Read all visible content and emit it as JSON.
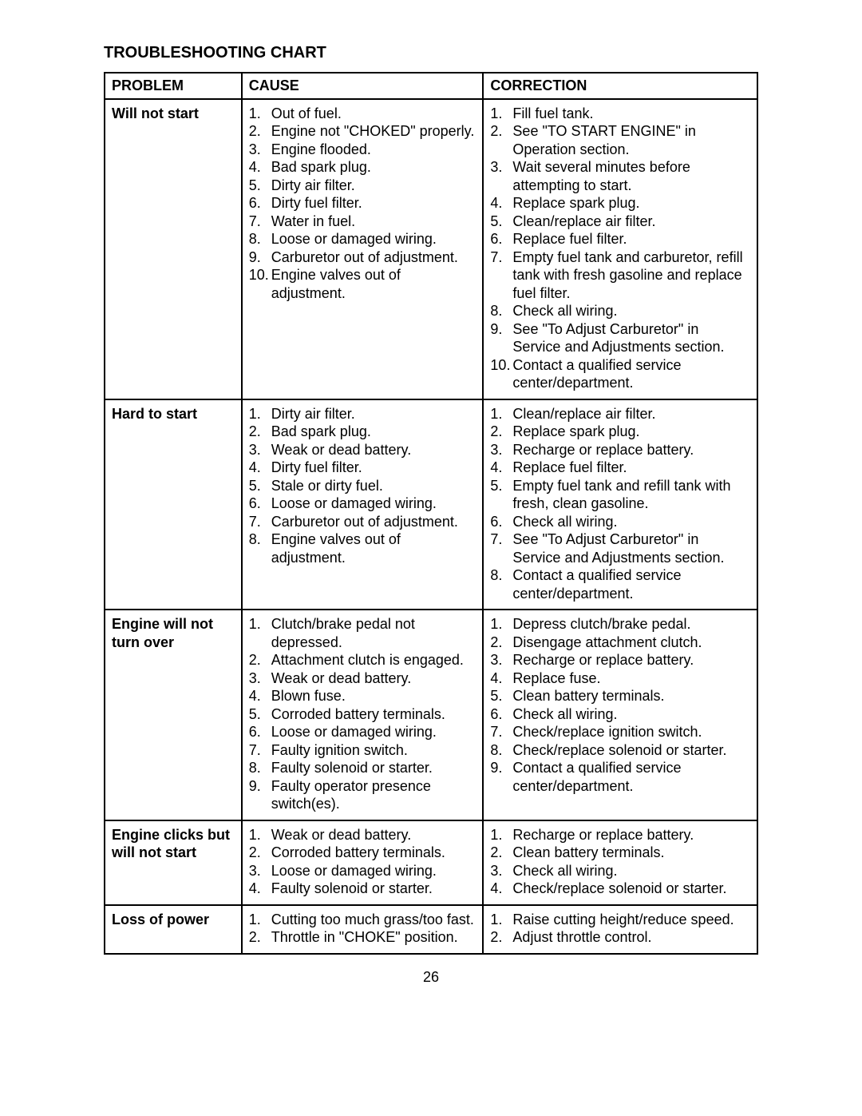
{
  "title": "TROUBLESHOOTING CHART",
  "headers": {
    "problem": "PROBLEM",
    "cause": "CAUSE",
    "correction": "CORRECTION"
  },
  "rows": [
    {
      "problem": "Will not start",
      "causes": [
        "Out of fuel.",
        "Engine not \"CHOKED\" properly.",
        "Engine flooded.",
        "Bad spark plug.",
        "Dirty air filter.",
        "Dirty fuel filter.",
        "Water in fuel.",
        "Loose or damaged wiring.",
        "Carburetor out of adjustment.",
        "Engine valves out of adjustment."
      ],
      "corrections": [
        "Fill fuel tank.",
        "See \"TO START ENGINE\" in Operation section.",
        "Wait several minutes before attempting to start.",
        "Replace spark plug.",
        "Clean/replace air filter.",
        "Replace fuel filter.",
        "Empty fuel tank and carburetor, refill tank with fresh gasoline and replace fuel filter.",
        "Check all wiring.",
        "See \"To Adjust Carburetor\" in Service and Adjustments section.",
        "Contact a qualified service center/department."
      ]
    },
    {
      "problem": "Hard to start",
      "causes": [
        "Dirty air filter.",
        "Bad spark plug.",
        "Weak or dead battery.",
        "Dirty fuel filter.",
        "Stale or dirty fuel.",
        "Loose or damaged wiring.",
        "Carburetor out of adjustment.",
        "Engine valves out of adjustment."
      ],
      "corrections": [
        "Clean/replace air filter.",
        "Replace spark plug.",
        "Recharge or replace battery.",
        "Replace fuel filter.",
        "Empty fuel tank and refill tank with fresh, clean gasoline.",
        "Check all wiring.",
        "See \"To Adjust Carburetor\" in Service and Adjustments section.",
        "Contact a qualified service center/department."
      ]
    },
    {
      "problem": "Engine will not turn over",
      "causes": [
        "Clutch/brake pedal not depressed.",
        "Attachment clutch is engaged.",
        "Weak or dead battery.",
        "Blown fuse.",
        "Corroded battery terminals.",
        "Loose or damaged wiring.",
        "Faulty ignition switch.",
        "Faulty solenoid or starter.",
        "Faulty operator presence switch(es)."
      ],
      "corrections": [
        "Depress clutch/brake pedal.",
        "Disengage attachment clutch.",
        "Recharge or replace battery.",
        "Replace fuse.",
        "Clean battery terminals.",
        "Check all wiring.",
        "Check/replace ignition switch.",
        "Check/replace solenoid or starter.",
        "Contact a qualified service center/department."
      ]
    },
    {
      "problem": "Engine clicks but will not start",
      "causes": [
        "Weak or dead battery.",
        "Corroded battery terminals.",
        "Loose or damaged wiring.",
        "Faulty solenoid or starter."
      ],
      "corrections": [
        "Recharge or replace battery.",
        "Clean battery terminals.",
        "Check all wiring.",
        "Check/replace solenoid or starter."
      ]
    },
    {
      "problem": "Loss of power",
      "causes": [
        "Cutting too much grass/too fast.",
        "Throttle in \"CHOKE\" position."
      ],
      "corrections": [
        "Raise cutting height/reduce speed.",
        "Adjust throttle control."
      ]
    }
  ],
  "page_number": "26",
  "style": {
    "background_color": "#ffffff",
    "text_color": "#000000",
    "border_color": "#000000",
    "title_fontsize": 20,
    "cell_fontsize": 18,
    "font_family": "Arial, Helvetica, sans-serif",
    "column_widths_pct": [
      21,
      37,
      42
    ]
  }
}
